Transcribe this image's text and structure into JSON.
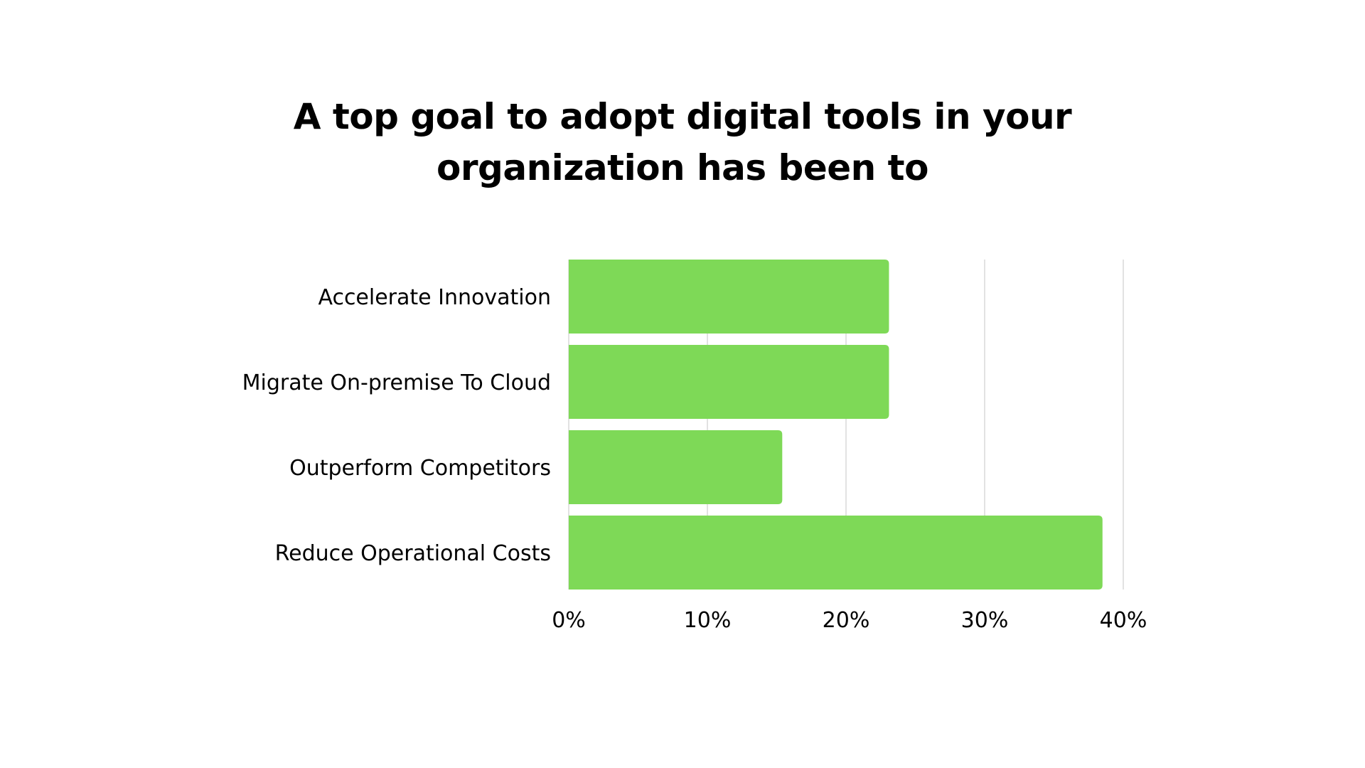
{
  "title_lines": [
    "A top goal to adopt digital tools in your",
    "organization has been to"
  ],
  "colors": {
    "bar": "#7ed957",
    "gridline": "#d9d9d9",
    "text": "#000000",
    "background": "#ffffff"
  },
  "chart_data": {
    "type": "bar",
    "orientation": "horizontal",
    "title": "A top goal to adopt digital tools in your organization has been to",
    "categories": [
      "Accelerate Innovation",
      "Migrate On-premise To Cloud",
      "Outperform Competitors",
      "Reduce Operational Costs"
    ],
    "values": [
      23.1,
      23.1,
      15.4,
      38.5
    ],
    "value_unit": "%",
    "xlim": [
      0,
      40
    ],
    "xticks": [
      0,
      10,
      20,
      30,
      40
    ],
    "xtick_labels": [
      "0%",
      "10%",
      "20%",
      "30%",
      "40%"
    ],
    "xlabel": "",
    "ylabel": "",
    "grid": "vertical",
    "legend": "none"
  }
}
